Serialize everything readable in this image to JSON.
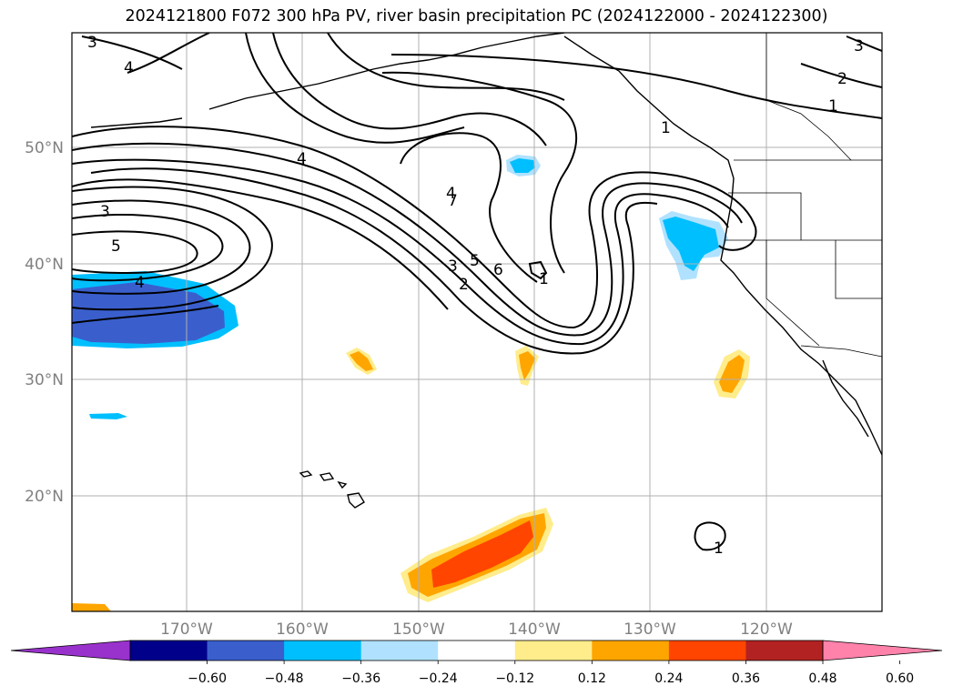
{
  "title": "2024121800 F072 300 hPa PV, river basin precipitation PC (2024122000 - 2024122300)",
  "lat_labels": [
    "50°N",
    "40°N",
    "30°N",
    "20°N"
  ],
  "lon_labels": [
    "170°W",
    "160°W",
    "150°W",
    "140°W",
    "130°W",
    "120°W"
  ],
  "colorbar": {
    "ticks": [
      "−0.60",
      "−0.48",
      "−0.36",
      "−0.24",
      "−0.12",
      "0.12",
      "0.24",
      "0.36",
      "0.48",
      "0.60"
    ],
    "colors": [
      "#9932cc",
      "#00008b",
      "#3a5fcd",
      "#00bfff",
      "#b0e2ff",
      "#ffffff",
      "#ffec8b",
      "#ffa500",
      "#ff4500",
      "#b22222",
      "#ff82ab"
    ]
  },
  "contour_labels": [
    "3",
    "4",
    "3",
    "5",
    "4",
    "4",
    "4",
    "7",
    "5",
    "6",
    "3",
    "2",
    "1",
    "2",
    "1",
    "1",
    "3",
    "1"
  ],
  "colors": {
    "contour": "#000000",
    "grid": "#b0b0b0",
    "coast": "#000000"
  }
}
